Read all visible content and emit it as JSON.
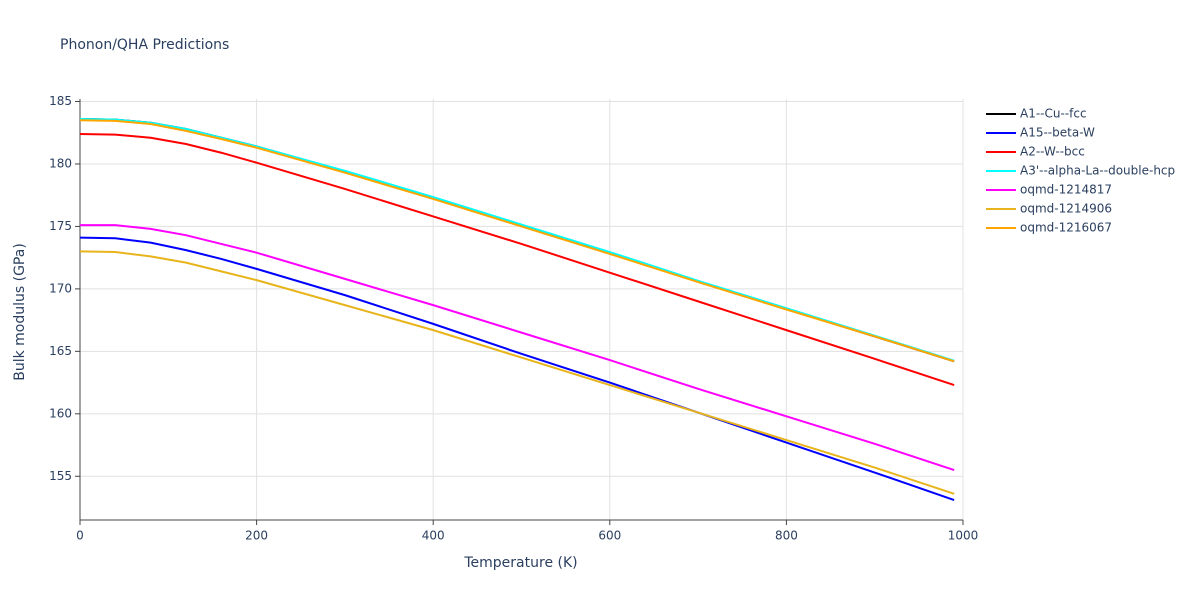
{
  "chart_data": {
    "type": "line",
    "title": "Phonon/QHA Predictions",
    "x_label": "Temperature (K)",
    "y_label": "Bulk modulus (GPa)",
    "x": [
      0,
      40,
      80,
      120,
      160,
      200,
      300,
      400,
      500,
      600,
      700,
      800,
      900,
      990
    ],
    "series": [
      {
        "name": "A1--Cu--fcc",
        "color": "#000000",
        "values": [
          183.6,
          183.55,
          183.3,
          182.8,
          182.1,
          181.4,
          179.4,
          177.3,
          175.1,
          172.9,
          170.6,
          168.4,
          166.2,
          164.2
        ]
      },
      {
        "name": "A15--beta-W",
        "color": "#0000ff",
        "values": [
          174.1,
          174.05,
          173.7,
          173.1,
          172.4,
          171.6,
          169.5,
          167.2,
          164.8,
          162.5,
          160.1,
          157.7,
          155.3,
          153.1
        ]
      },
      {
        "name": "A2--W--bcc",
        "color": "#ff0000",
        "values": [
          182.4,
          182.35,
          182.1,
          181.6,
          180.9,
          180.1,
          178.0,
          175.8,
          173.6,
          171.3,
          169.0,
          166.7,
          164.4,
          162.3
        ]
      },
      {
        "name": "A3'--alpha-La--double-hcp",
        "color": "#00ffff",
        "values": [
          183.6,
          183.55,
          183.3,
          182.8,
          182.1,
          181.4,
          179.45,
          177.35,
          175.15,
          172.95,
          170.65,
          168.45,
          166.25,
          164.25
        ]
      },
      {
        "name": "oqmd-1214817",
        "color": "#ff00ff",
        "values": [
          175.1,
          175.1,
          174.8,
          174.3,
          173.6,
          172.9,
          170.8,
          168.7,
          166.5,
          164.3,
          162.0,
          159.8,
          157.6,
          155.5
        ]
      },
      {
        "name": "oqmd-1214906",
        "color": "#e8b41c",
        "values": [
          173.0,
          172.95,
          172.6,
          172.1,
          171.4,
          170.7,
          168.7,
          166.7,
          164.5,
          162.3,
          160.1,
          157.9,
          155.7,
          153.6
        ]
      },
      {
        "name": "oqmd-1216067",
        "color": "#ffa500",
        "values": [
          183.5,
          183.45,
          183.2,
          182.65,
          182.0,
          181.3,
          179.3,
          177.2,
          175.0,
          172.8,
          170.55,
          168.35,
          166.2,
          164.2
        ]
      }
    ],
    "xlim": [
      0,
      1000
    ],
    "xticks": [
      0,
      200,
      400,
      600,
      800,
      1000
    ],
    "ylim": [
      151.5,
      185.2
    ],
    "yticks": [
      155,
      160,
      165,
      170,
      175,
      180,
      185
    ],
    "grid": true
  }
}
